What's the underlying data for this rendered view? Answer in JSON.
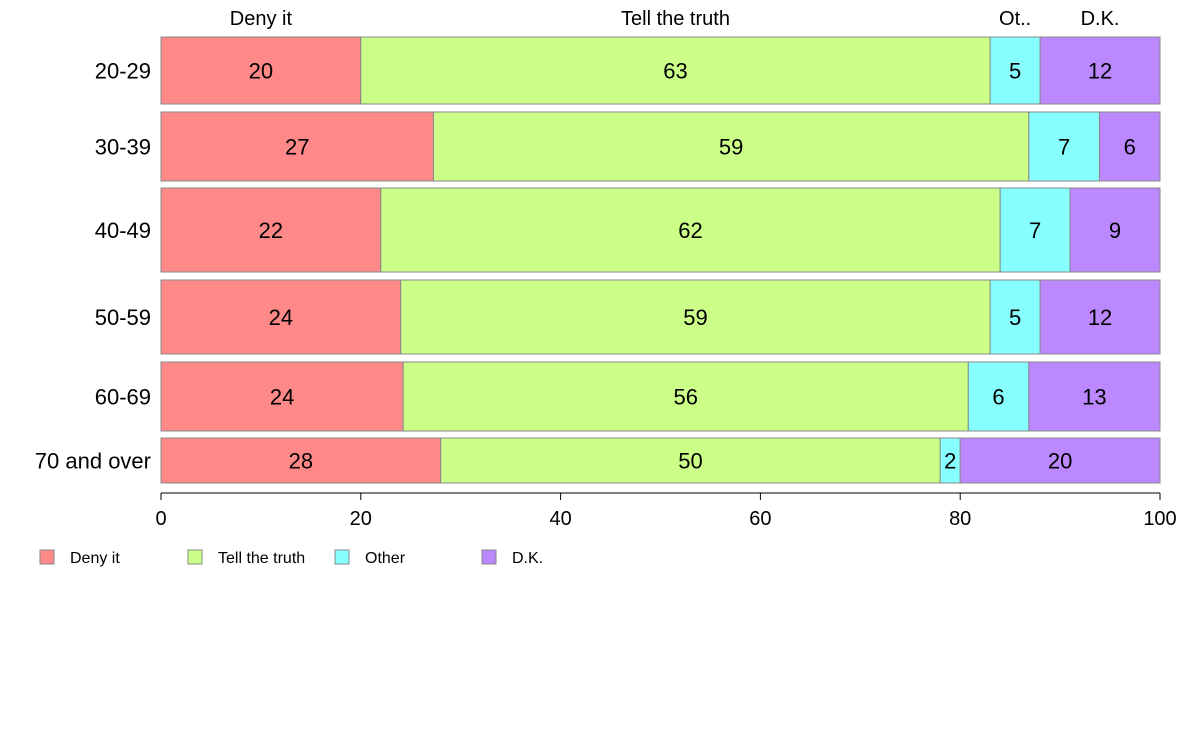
{
  "chart_data": {
    "type": "bar",
    "orientation": "horizontal",
    "stacked": true,
    "categories": [
      "20-29",
      "30-39",
      "40-49",
      "50-59",
      "60-69",
      "70 and over"
    ],
    "series": [
      {
        "name": "Deny it",
        "color": "#ff8888",
        "values": [
          20,
          27,
          22,
          24,
          24,
          28
        ]
      },
      {
        "name": "Tell the truth",
        "color": "#ccff88",
        "values": [
          63,
          59,
          62,
          59,
          56,
          50
        ]
      },
      {
        "name": "Other",
        "color": "#88ffff",
        "values": [
          5,
          7,
          7,
          5,
          6,
          2
        ]
      },
      {
        "name": "D.K.",
        "color": "#bb88ff",
        "values": [
          12,
          6,
          9,
          12,
          13,
          20
        ]
      }
    ],
    "top_labels": [
      "Deny it",
      "Tell the truth",
      "Ot..",
      "D.K."
    ],
    "xlim": [
      0,
      100
    ],
    "xticks": [
      0,
      20,
      40,
      60,
      80,
      100
    ],
    "grid": false,
    "legend_position": "bottom-left"
  }
}
